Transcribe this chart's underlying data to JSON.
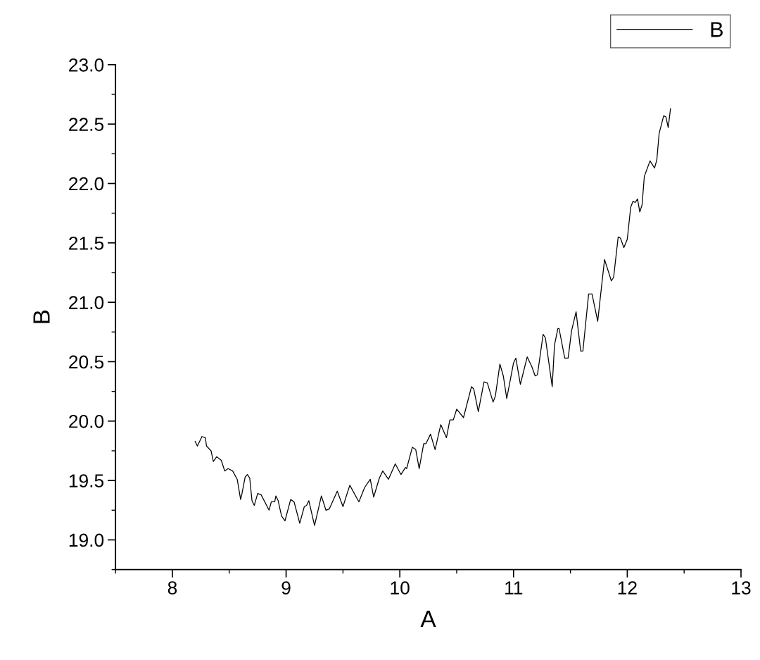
{
  "chart_data": {
    "type": "line",
    "xlabel": "A",
    "ylabel": "B",
    "xlim": [
      7.5,
      13
    ],
    "xticks": [
      8,
      9,
      10,
      11,
      12,
      13
    ],
    "ylim": [
      18.75,
      23
    ],
    "yticks": [
      {
        "value": 19,
        "label": "19.0"
      },
      {
        "value": 19.5,
        "label": "19.5"
      },
      {
        "value": 20,
        "label": "20.0"
      },
      {
        "value": 20.5,
        "label": "20.5"
      },
      {
        "value": 21,
        "label": "21.0"
      },
      {
        "value": 21.5,
        "label": "21.5"
      },
      {
        "value": 22,
        "label": "22.0"
      },
      {
        "value": 22.5,
        "label": "22.5"
      },
      {
        "value": 23,
        "label": "23.0"
      }
    ],
    "grid": false,
    "legend": "top right",
    "marker": "none",
    "line_style": "solid",
    "x": [
      8.2,
      8.22,
      8.26,
      8.29,
      8.3,
      8.34,
      8.36,
      8.39,
      8.43,
      8.46,
      8.49,
      8.53,
      8.57,
      8.6,
      8.61,
      8.64,
      8.66,
      8.68,
      8.7,
      8.72,
      8.75,
      8.78,
      8.85,
      8.87,
      8.9,
      8.91,
      8.93,
      8.96,
      8.99,
      9.04,
      9.07,
      9.12,
      9.16,
      9.18,
      9.2,
      9.25,
      9.31,
      9.35,
      9.38,
      9.45,
      9.5,
      9.56,
      9.64,
      9.69,
      9.74,
      9.77,
      9.82,
      9.85,
      9.9,
      9.96,
      10.01,
      10.05,
      10.06,
      10.11,
      10.14,
      10.17,
      10.21,
      10.23,
      10.27,
      10.31,
      10.36,
      10.41,
      10.44,
      10.47,
      10.5,
      10.56,
      10.63,
      10.65,
      10.69,
      10.74,
      10.77,
      10.82,
      10.84,
      10.88,
      10.91,
      10.94,
      11.0,
      11.02,
      11.06,
      11.12,
      11.16,
      11.19,
      11.21,
      11.26,
      11.28,
      11.34,
      11.36,
      11.39,
      11.4,
      11.45,
      11.48,
      11.51,
      11.55,
      11.59,
      11.61,
      11.66,
      11.69,
      11.74,
      11.8,
      11.86,
      11.88,
      11.92,
      11.94,
      11.97,
      12.0,
      12.03,
      12.05,
      12.07,
      12.09,
      12.11,
      12.13,
      12.15,
      12.2,
      12.24,
      12.26,
      12.28,
      12.32,
      12.34,
      12.36,
      12.38
    ],
    "series": [
      {
        "name": "B",
        "color": "#000000",
        "values": [
          19.83,
          19.79,
          19.87,
          19.86,
          19.79,
          19.75,
          19.66,
          19.7,
          19.67,
          19.58,
          19.6,
          19.58,
          19.51,
          19.34,
          19.38,
          19.53,
          19.55,
          19.52,
          19.33,
          19.29,
          19.39,
          19.38,
          19.25,
          19.32,
          19.32,
          19.37,
          19.33,
          19.2,
          19.16,
          19.34,
          19.32,
          19.14,
          19.28,
          19.29,
          19.33,
          19.12,
          19.37,
          19.25,
          19.26,
          19.41,
          19.28,
          19.46,
          19.32,
          19.44,
          19.51,
          19.36,
          19.52,
          19.58,
          19.51,
          19.64,
          19.55,
          19.61,
          19.6,
          19.78,
          19.76,
          19.6,
          19.81,
          19.81,
          19.89,
          19.76,
          19.97,
          19.86,
          20.01,
          20.01,
          20.1,
          20.03,
          20.29,
          20.27,
          20.08,
          20.33,
          20.32,
          20.16,
          20.21,
          20.48,
          20.38,
          20.19,
          20.49,
          20.53,
          20.31,
          20.54,
          20.46,
          20.38,
          20.39,
          20.73,
          20.7,
          20.29,
          20.64,
          20.78,
          20.78,
          20.53,
          20.53,
          20.76,
          20.92,
          20.59,
          20.59,
          21.07,
          21.07,
          20.84,
          21.36,
          21.18,
          21.21,
          21.55,
          21.54,
          21.46,
          21.53,
          21.8,
          21.85,
          21.84,
          21.87,
          21.76,
          21.82,
          22.06,
          22.19,
          22.13,
          22.2,
          22.42,
          22.57,
          22.56,
          22.47,
          22.63
        ]
      }
    ]
  }
}
